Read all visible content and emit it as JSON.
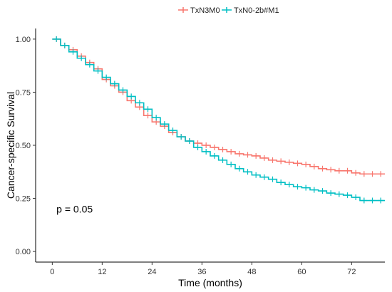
{
  "chart_data": {
    "type": "line",
    "title": "",
    "xlabel": "Time (months)",
    "ylabel": "Cancer-specific Survival",
    "xlim": [
      -4,
      80
    ],
    "ylim": [
      -0.05,
      1.05
    ],
    "xticks": [
      0,
      12,
      24,
      36,
      48,
      60,
      72
    ],
    "xtick_labels": [
      "0",
      "12",
      "24",
      "36",
      "48",
      "60",
      "72"
    ],
    "yticks": [
      0,
      0.25,
      0.5,
      0.75,
      1
    ],
    "ytick_labels": [
      "0.00",
      "0.25",
      "0.50",
      "0.75",
      "1.00"
    ],
    "grid": false,
    "legend_position": "top",
    "annotation": "p = 0.05",
    "series": [
      {
        "name": "TxN3M0",
        "color": "#F8766D",
        "x": [
          0,
          2,
          4,
          6,
          8,
          10,
          12,
          14,
          16,
          18,
          20,
          22,
          24,
          26,
          28,
          30,
          32,
          34,
          36,
          38,
          40,
          42,
          44,
          46,
          48,
          50,
          52,
          54,
          56,
          58,
          60,
          62,
          64,
          66,
          68,
          70,
          72,
          74,
          76,
          78,
          80
        ],
        "values": [
          1.0,
          0.97,
          0.95,
          0.92,
          0.89,
          0.86,
          0.81,
          0.78,
          0.75,
          0.71,
          0.68,
          0.64,
          0.61,
          0.59,
          0.56,
          0.54,
          0.52,
          0.51,
          0.5,
          0.49,
          0.48,
          0.47,
          0.46,
          0.455,
          0.45,
          0.44,
          0.43,
          0.425,
          0.42,
          0.415,
          0.41,
          0.4,
          0.39,
          0.385,
          0.38,
          0.38,
          0.37,
          0.365,
          0.365,
          0.365,
          0.365
        ]
      },
      {
        "name": "TxN0-2b#M1",
        "color": "#00BFC4",
        "x": [
          0,
          2,
          4,
          6,
          8,
          10,
          12,
          14,
          16,
          18,
          20,
          22,
          24,
          26,
          28,
          30,
          32,
          34,
          36,
          38,
          40,
          42,
          44,
          46,
          48,
          50,
          52,
          54,
          56,
          58,
          60,
          62,
          64,
          66,
          68,
          70,
          72,
          74,
          76,
          78,
          80
        ],
        "values": [
          1.0,
          0.97,
          0.94,
          0.91,
          0.88,
          0.85,
          0.82,
          0.79,
          0.76,
          0.73,
          0.7,
          0.67,
          0.63,
          0.6,
          0.57,
          0.54,
          0.52,
          0.49,
          0.47,
          0.45,
          0.43,
          0.41,
          0.39,
          0.375,
          0.36,
          0.35,
          0.34,
          0.325,
          0.315,
          0.305,
          0.3,
          0.29,
          0.285,
          0.275,
          0.27,
          0.265,
          0.255,
          0.24,
          0.24,
          0.24,
          0.24
        ]
      }
    ]
  }
}
